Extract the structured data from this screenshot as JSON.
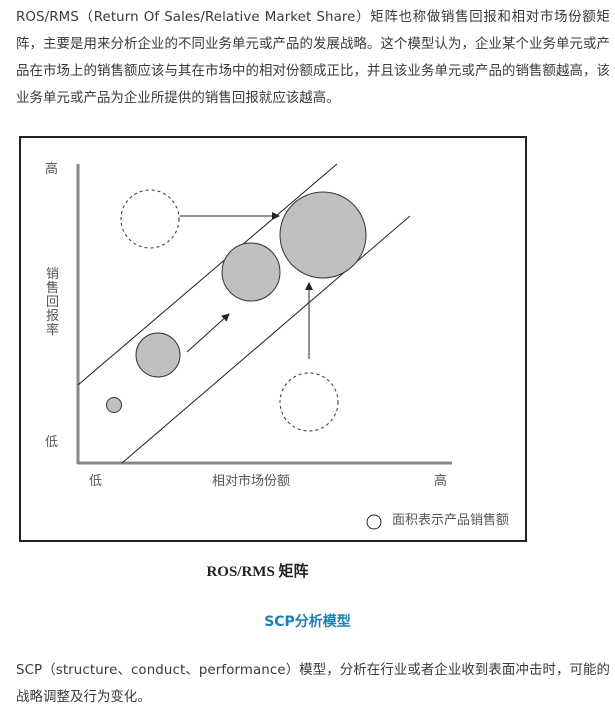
{
  "intro_paragraph": "ROS/RMS（Return Of Sales/Relative Market Share）矩阵也称做销售回报和相对市场份额矩阵，主要是用来分析企业的不同业务单元或产品的发展战略。这个模型认为，企业某个业务单元或产品在市场上的销售额应该与其在市场中的相对份额成正比，并且该业务单元或产品的销售额越高，该业务单元或产品为企业所提供的销售回报就应该越高。",
  "diagram": {
    "y_axis_high": "高",
    "y_axis_label": [
      "销",
      "售",
      "回",
      "报",
      "率"
    ],
    "y_axis_low": "低",
    "x_axis_low": "低",
    "x_axis_label": "相对市场份额",
    "x_axis_high": "高",
    "legend": "面积表示产品销售额",
    "fill_color": "#c0c0c0"
  },
  "caption": "ROS/RMS 矩阵",
  "section_heading": "SCP分析模型",
  "scp_paragraph": "SCP（structure、conduct、performance）模型，分析在行业或者企业收到表面冲击时，可能的战略调整及行为变化。",
  "colors": {
    "heading": "#1a7fb5",
    "text": "#3a3a3a"
  }
}
